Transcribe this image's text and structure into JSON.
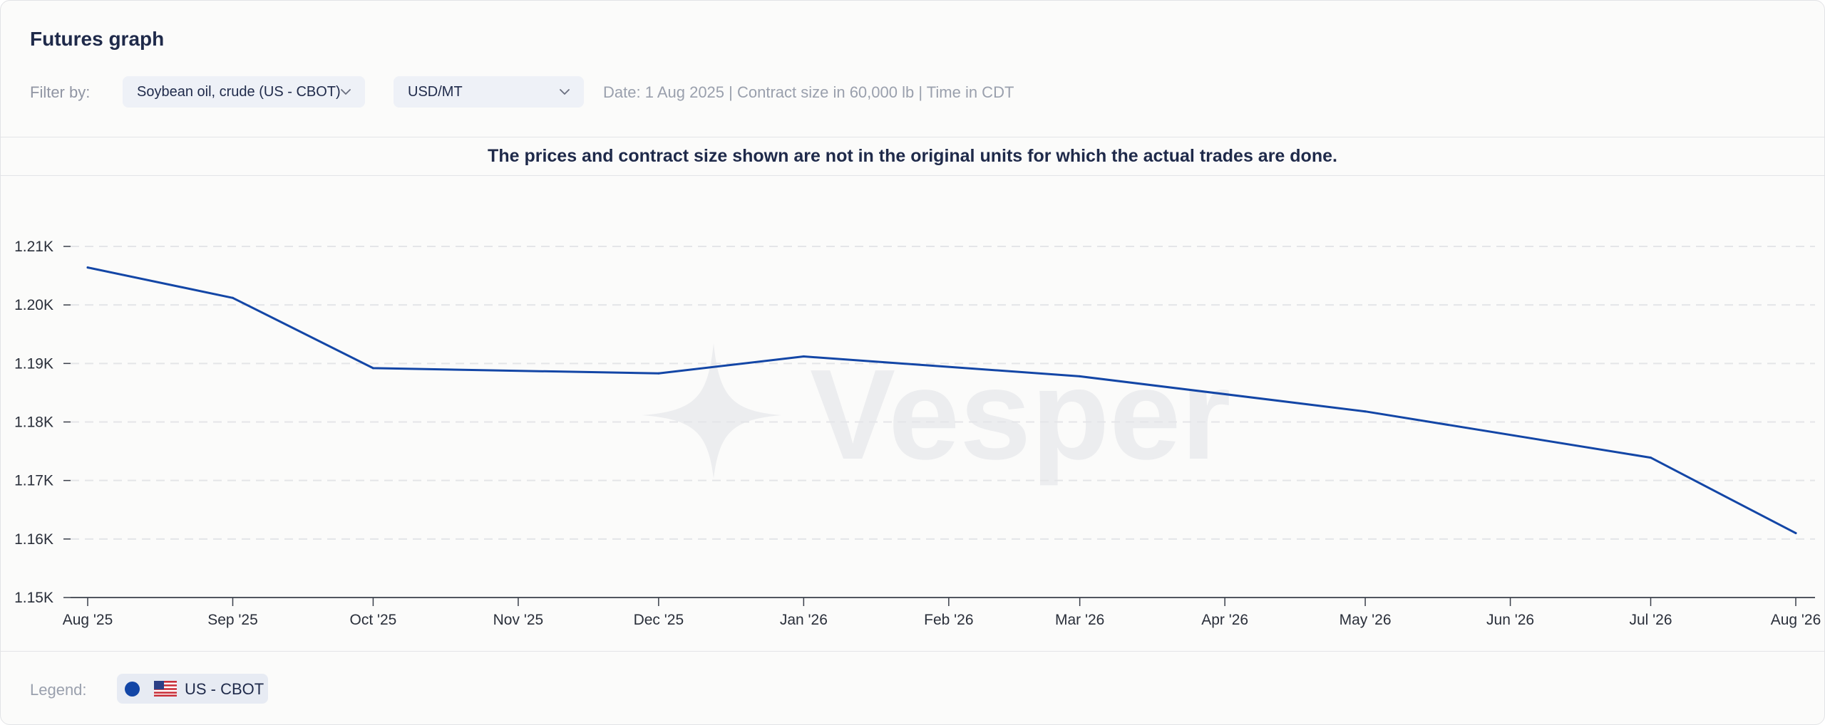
{
  "header": {
    "title": "Futures graph"
  },
  "filters": {
    "label": "Filter by:",
    "commodity_value": "Soybean oil, crude (US - CBOT)",
    "unit_value": "USD/MT",
    "meta": "Date: 1 Aug 2025 | Contract size in 60,000 lb | Time in CDT"
  },
  "notice": "The prices and contract size shown are not in the original units for which the actual trades are done.",
  "watermark": "Vesper",
  "legend": {
    "label": "Legend:",
    "items": [
      {
        "name": "US - CBOT",
        "color": "#1346a6",
        "icon": "us-flag-icon"
      }
    ]
  },
  "colors": {
    "series": "#1346a6",
    "accent_bg": "#eef1f7",
    "text": "#1f2a4a"
  },
  "chart_data": {
    "type": "line",
    "title": "",
    "xlabel": "",
    "ylabel": "",
    "grid": true,
    "grid_style": "dashed horizontal",
    "ylim": [
      1150,
      1210
    ],
    "y_ticks": [
      {
        "value": 1150,
        "label": "1.15K"
      },
      {
        "value": 1160,
        "label": "1.16K"
      },
      {
        "value": 1170,
        "label": "1.17K"
      },
      {
        "value": 1180,
        "label": "1.18K"
      },
      {
        "value": 1190,
        "label": "1.19K"
      },
      {
        "value": 1200,
        "label": "1.20K"
      },
      {
        "value": 1210,
        "label": "1.21K"
      }
    ],
    "x_range": [
      "2025-08-01",
      "2026-08-01"
    ],
    "x_ticks": [
      {
        "date": "2025-08-01",
        "label": "Aug '25"
      },
      {
        "date": "2025-09-01",
        "label": "Sep '25"
      },
      {
        "date": "2025-10-01",
        "label": "Oct '25"
      },
      {
        "date": "2025-11-01",
        "label": "Nov '25"
      },
      {
        "date": "2025-12-01",
        "label": "Dec '25"
      },
      {
        "date": "2026-01-01",
        "label": "Jan '26"
      },
      {
        "date": "2026-02-01",
        "label": "Feb '26"
      },
      {
        "date": "2026-03-01",
        "label": "Mar '26"
      },
      {
        "date": "2026-04-01",
        "label": "Apr '26"
      },
      {
        "date": "2026-05-01",
        "label": "May '26"
      },
      {
        "date": "2026-06-01",
        "label": "Jun '26"
      },
      {
        "date": "2026-07-01",
        "label": "Jul '26"
      },
      {
        "date": "2026-08-01",
        "label": "Aug '26"
      }
    ],
    "series": [
      {
        "name": "US - CBOT",
        "color": "#1346a6",
        "points": [
          {
            "x": "2025-08-01",
            "y": 1206.4
          },
          {
            "x": "2025-09-01",
            "y": 1201.2
          },
          {
            "x": "2025-10-01",
            "y": 1189.2
          },
          {
            "x": "2025-12-01",
            "y": 1188.3
          },
          {
            "x": "2026-01-01",
            "y": 1191.2
          },
          {
            "x": "2026-03-01",
            "y": 1187.8
          },
          {
            "x": "2026-05-01",
            "y": 1181.8
          },
          {
            "x": "2026-07-01",
            "y": 1173.9
          },
          {
            "x": "2026-08-01",
            "y": 1161.0
          }
        ]
      }
    ]
  }
}
